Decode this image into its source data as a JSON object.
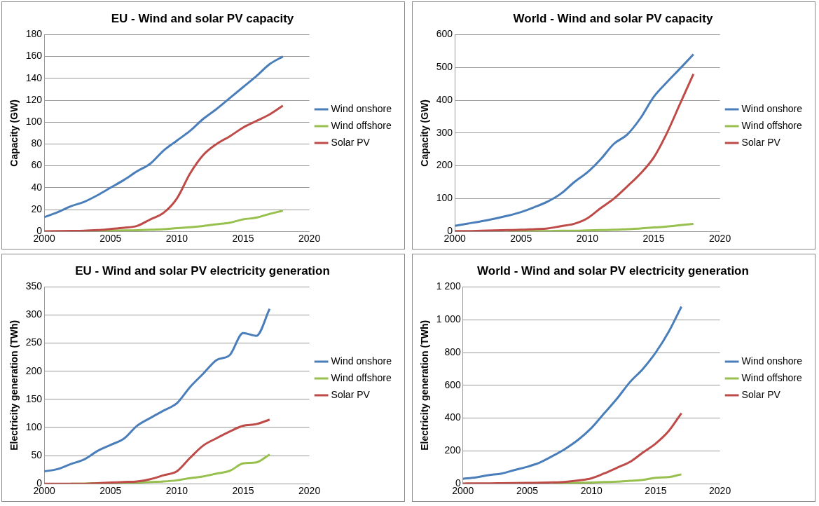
{
  "chart_data": [
    {
      "type": "line",
      "title": "EU - Wind and solar PV capacity",
      "ylabel": "Capacity (GW)",
      "x": [
        2000,
        2001,
        2002,
        2003,
        2004,
        2005,
        2006,
        2007,
        2008,
        2009,
        2010,
        2011,
        2012,
        2013,
        2014,
        2015,
        2016,
        2017,
        2018
      ],
      "series": [
        {
          "name": "Wind onshore",
          "color": "#4a7ebb",
          "values": [
            13,
            17.5,
            23,
            27,
            33,
            40,
            47,
            55,
            62,
            74,
            83,
            92,
            103,
            112,
            122,
            132,
            142,
            153,
            160
          ]
        },
        {
          "name": "Wind offshore",
          "color": "#98c04f",
          "values": [
            null,
            null,
            null,
            0.5,
            0.6,
            0.7,
            0.9,
            1.1,
            1.5,
            2,
            3,
            3.8,
            5,
            6.5,
            8,
            11,
            12.6,
            16,
            19
          ]
        },
        {
          "name": "Solar PV",
          "color": "#be4b48",
          "values": [
            0.2,
            0.3,
            0.4,
            0.6,
            1.2,
            2.2,
            3.3,
            5,
            11,
            17,
            30,
            53,
            70,
            80,
            87,
            95,
            101,
            107,
            115
          ]
        }
      ],
      "xlim": [
        2000,
        2020
      ],
      "xticks": [
        2000,
        2005,
        2010,
        2015,
        2020
      ],
      "ylim": [
        0,
        180
      ],
      "yticks": [
        0,
        20,
        40,
        60,
        80,
        100,
        120,
        140,
        160,
        180
      ],
      "grid": "y",
      "legend": "right",
      "marker": "none",
      "line_style": "solid"
    },
    {
      "type": "line",
      "title": "World - Wind and solar PV capacity",
      "ylabel": "Capacity (GW)",
      "x": [
        2000,
        2001,
        2002,
        2003,
        2004,
        2005,
        2006,
        2007,
        2008,
        2009,
        2010,
        2011,
        2012,
        2013,
        2014,
        2015,
        2016,
        2017,
        2018
      ],
      "series": [
        {
          "name": "Wind onshore",
          "color": "#4a7ebb",
          "values": [
            17,
            24,
            31,
            39,
            48,
            59,
            74,
            91,
            115,
            150,
            180,
            220,
            267,
            295,
            345,
            410,
            455,
            497,
            540
          ]
        },
        {
          "name": "Wind offshore",
          "color": "#98c04f",
          "values": [
            null,
            null,
            null,
            null,
            0,
            1,
            1,
            1,
            2,
            2,
            3,
            4,
            5,
            7,
            9,
            12,
            15,
            19,
            23
          ]
        },
        {
          "name": "Solar PV",
          "color": "#be4b48",
          "values": [
            1,
            1,
            2,
            3,
            4,
            5,
            7,
            9,
            16,
            23,
            40,
            71,
            100,
            137,
            176,
            225,
            300,
            390,
            480
          ]
        }
      ],
      "xlim": [
        2000,
        2020
      ],
      "xticks": [
        2000,
        2005,
        2010,
        2015,
        2020
      ],
      "ylim": [
        0,
        600
      ],
      "yticks": [
        0,
        100,
        200,
        300,
        400,
        500,
        600
      ],
      "grid": "y",
      "legend": "right",
      "marker": "none",
      "line_style": "solid"
    },
    {
      "type": "line",
      "title": "EU - Wind and solar PV electricity generation",
      "ylabel": "Electricity generation (TWh)",
      "x": [
        2000,
        2001,
        2002,
        2003,
        2004,
        2005,
        2006,
        2007,
        2008,
        2009,
        2010,
        2011,
        2012,
        2013,
        2014,
        2015,
        2016,
        2017
      ],
      "series": [
        {
          "name": "Wind onshore",
          "color": "#4a7ebb",
          "values": [
            22,
            26,
            35,
            43,
            58,
            69,
            80,
            103,
            117,
            130,
            143,
            172,
            196,
            220,
            229,
            268,
            263,
            311
          ]
        },
        {
          "name": "Wind offshore",
          "color": "#98c04f",
          "values": [
            null,
            null,
            0,
            0,
            1,
            1,
            2,
            2,
            3,
            4,
            6,
            10,
            13,
            18,
            23,
            36,
            38,
            52
          ]
        },
        {
          "name": "Solar PV",
          "color": "#be4b48",
          "values": [
            0,
            0,
            0,
            0,
            1,
            2,
            3,
            4,
            8,
            15,
            22,
            46,
            68,
            81,
            93,
            103,
            106,
            114
          ]
        }
      ],
      "xlim": [
        2000,
        2020
      ],
      "xticks": [
        2000,
        2005,
        2010,
        2015,
        2020
      ],
      "ylim": [
        0,
        350
      ],
      "yticks": [
        0,
        50,
        100,
        150,
        200,
        250,
        300,
        350
      ],
      "grid": "y",
      "legend": "right",
      "marker": "none",
      "line_style": "solid"
    },
    {
      "type": "line",
      "title": "World - Wind and solar PV electricity generation",
      "ylabel": "Electricity generation (TWh)",
      "x": [
        2000,
        2001,
        2002,
        2003,
        2004,
        2005,
        2006,
        2007,
        2008,
        2009,
        2010,
        2011,
        2012,
        2013,
        2014,
        2015,
        2016,
        2017
      ],
      "series": [
        {
          "name": "Wind onshore",
          "color": "#4a7ebb",
          "values": [
            30,
            38,
            52,
            62,
            83,
            103,
            130,
            170,
            215,
            270,
            340,
            430,
            520,
            620,
            700,
            800,
            925,
            1080
          ]
        },
        {
          "name": "Wind offshore",
          "color": "#98c04f",
          "values": [
            null,
            null,
            null,
            null,
            null,
            null,
            null,
            3,
            4,
            5,
            7,
            10,
            13,
            18,
            23,
            36,
            40,
            57
          ]
        },
        {
          "name": "Solar PV",
          "color": "#be4b48",
          "values": [
            1,
            2,
            2,
            3,
            4,
            5,
            6,
            8,
            12,
            20,
            33,
            63,
            98,
            133,
            190,
            245,
            320,
            430
          ]
        }
      ],
      "xlim": [
        2000,
        2020
      ],
      "xticks": [
        2000,
        2005,
        2010,
        2015,
        2020
      ],
      "ylim": [
        0,
        1200
      ],
      "yticks": [
        0,
        200,
        400,
        600,
        800,
        {
          "value": 1000,
          "label": "1 000"
        },
        {
          "value": 1200,
          "label": "1 200"
        }
      ],
      "grid": "y",
      "legend": "right",
      "marker": "none",
      "line_style": "solid"
    }
  ]
}
